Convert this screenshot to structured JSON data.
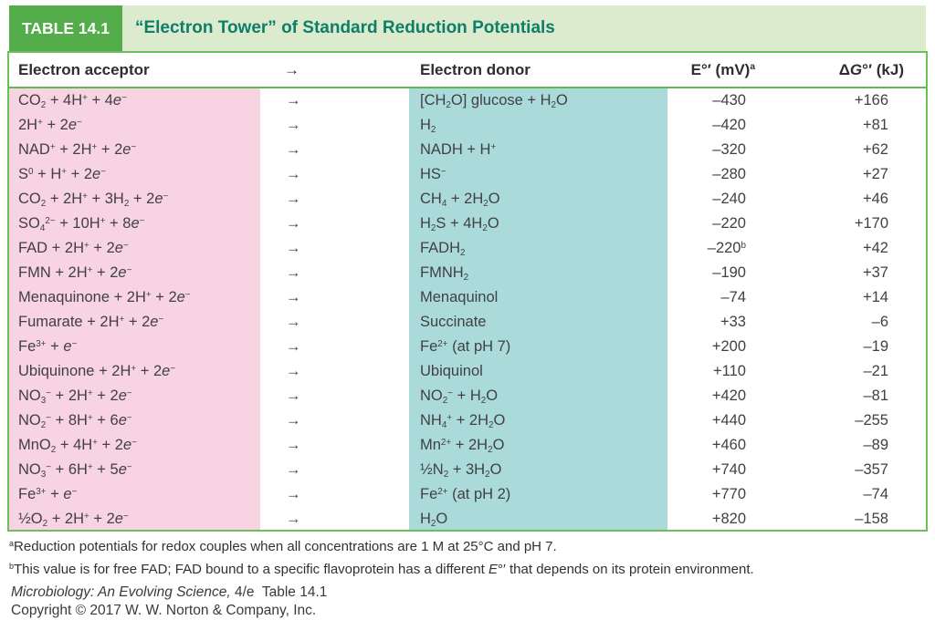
{
  "header": {
    "label": "TABLE 14.1",
    "title": "“Electron Tower” of Standard Reduction Potentials"
  },
  "table": {
    "columns": {
      "acceptor": "Electron acceptor",
      "arrow": "→",
      "donor": "Electron donor",
      "e": "E°′ (mV)<sup>a</sup>",
      "g": "Δ<i>G</i>°′ (kJ)"
    },
    "row_arrow": "→",
    "rows": [
      {
        "acceptor": "CO<sub>2</sub> + 4H<sup>+</sup> + 4<i>e</i><sup>−</sup>",
        "donor": "[CH<sub>2</sub>O] glucose + H<sub>2</sub>O",
        "e": "–430",
        "g": "+166"
      },
      {
        "acceptor": "2H<sup>+</sup> + 2<i>e</i><sup>−</sup>",
        "donor": "H<sub>2</sub>",
        "e": "–420",
        "g": "+81"
      },
      {
        "acceptor": "NAD<sup>+</sup> + 2H<sup>+</sup> + 2<i>e</i><sup>−</sup>",
        "donor": "NADH + H<sup>+</sup>",
        "e": "–320",
        "g": "+62"
      },
      {
        "acceptor": "S<sup>0</sup> + H<sup>+</sup> + 2<i>e</i><sup>−</sup>",
        "donor": "HS<sup>−</sup>",
        "e": "–280",
        "g": "+27"
      },
      {
        "acceptor": "CO<sub>2</sub> + 2H<sup>+</sup> + 3H<sub>2</sub> + 2<i>e</i><sup>−</sup>",
        "donor": "CH<sub>4</sub> + 2H<sub>2</sub>O",
        "e": "–240",
        "g": "+46"
      },
      {
        "acceptor": "SO<sub>4</sub><sup>2−</sup> + 10H<sup>+</sup> + 8<i>e</i><sup>−</sup>",
        "donor": "H<sub>2</sub>S + 4H<sub>2</sub>O",
        "e": "–220",
        "g": "+170"
      },
      {
        "acceptor": "FAD + 2H<sup>+</sup> + 2<i>e</i><sup>−</sup>",
        "donor": "FADH<sub>2</sub>",
        "e": "–220<sup>b</sup>",
        "g": "+42"
      },
      {
        "acceptor": "FMN + 2H<sup>+</sup> + 2<i>e</i><sup>−</sup>",
        "donor": "FMNH<sub>2</sub>",
        "e": "–190",
        "g": "+37"
      },
      {
        "acceptor": "Menaquinone + 2H<sup>+</sup> + 2<i>e</i><sup>−</sup>",
        "donor": "Menaquinol",
        "e": "–74",
        "g": "+14"
      },
      {
        "acceptor": "Fumarate + 2H<sup>+</sup> + 2<i>e</i><sup>−</sup>",
        "donor": "Succinate",
        "e": "+33",
        "g": "–6"
      },
      {
        "acceptor": "Fe<sup>3+</sup> + <i>e</i><sup>−</sup>",
        "donor": "Fe<sup>2+</sup> (at pH 7)",
        "e": "+200",
        "g": "–19"
      },
      {
        "acceptor": "Ubiquinone + 2H<sup>+</sup> + 2<i>e</i><sup>−</sup>",
        "donor": "Ubiquinol",
        "e": "+110",
        "g": "–21"
      },
      {
        "acceptor": "NO<sub>3</sub><sup>−</sup> + 2H<sup>+</sup> + 2<i>e</i><sup>−</sup>",
        "donor": "NO<sub>2</sub><sup>−</sup> + H<sub>2</sub>O",
        "e": "+420",
        "g": "–81"
      },
      {
        "acceptor": "NO<sub>2</sub><sup>−</sup> + 8H<sup>+</sup> + 6<i>e</i><sup>−</sup>",
        "donor": "NH<sub>4</sub><sup>+</sup> + 2H<sub>2</sub>O",
        "e": "+440",
        "g": "–255"
      },
      {
        "acceptor": "MnO<sub>2</sub> + 4H<sup>+</sup> + 2<i>e</i><sup>−</sup>",
        "donor": "Mn<sup>2+</sup> + 2H<sub>2</sub>O",
        "e": "+460",
        "g": "–89"
      },
      {
        "acceptor": "NO<sub>3</sub><sup>−</sup> + 6H<sup>+</sup> + 5<i>e</i><sup>−</sup>",
        "donor": "½N<sub>2</sub> + 3H<sub>2</sub>O",
        "e": "+740",
        "g": "–357"
      },
      {
        "acceptor": "Fe<sup>3+</sup> + <i>e</i><sup>−</sup>",
        "donor": "Fe<sup>2+</sup> (at pH 2)",
        "e": "+770",
        "g": "–74"
      },
      {
        "acceptor": "½O<sub>2</sub> + 2H<sup>+</sup> + 2<i>e</i><sup>−</sup>",
        "donor": "H<sub>2</sub>O",
        "e": "+820",
        "g": "–158"
      }
    ]
  },
  "footnotes": {
    "a": "<sup>a</sup>Reduction potentials for redox couples when all concentrations are 1 M at 25°C and pH 7.",
    "b": "<sup>b</sup>This value is for free FAD; FAD bound to a specific flavoprotein has a different <i>E</i>°′ that depends on its protein environment.",
    "credit": "<i>Microbiology: An Evolving Science,</i> 4/e&nbsp; Table 14.1",
    "copyright": "Copyright © 2017 W. W. Norton & Company, Inc."
  },
  "colors": {
    "green-badge": "#54ad4b",
    "green-band": "#dceacd",
    "green-border": "#6cc05a",
    "green-line": "#5eb950",
    "teal-title": "#0e7e68",
    "pink": "#f8d3e2",
    "teal": "#abdadb",
    "ink": "#414043"
  }
}
